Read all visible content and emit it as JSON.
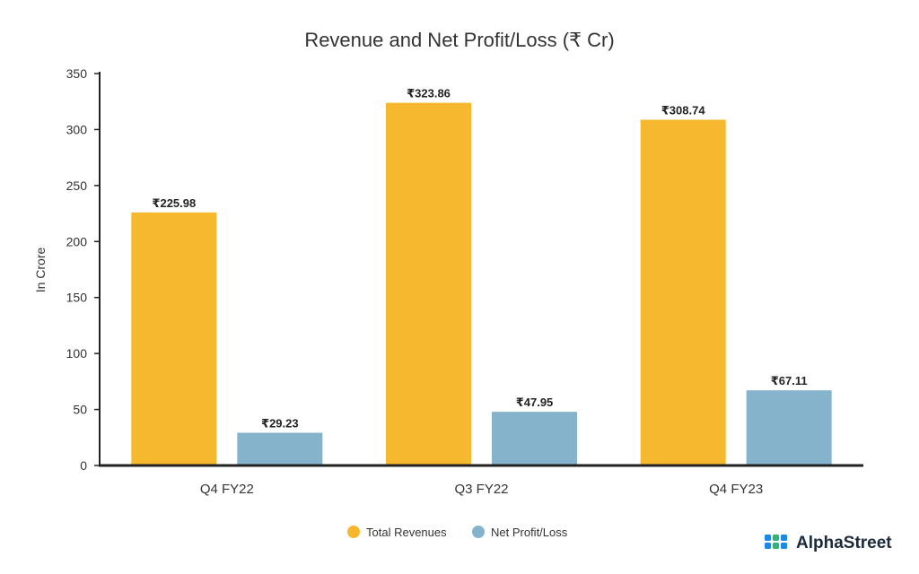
{
  "chart_data": {
    "type": "bar",
    "title": "Revenue and Net Profit/Loss (₹ Cr)",
    "ylabel": "In Crore",
    "xlabel": "",
    "categories": [
      "Q4 FY22",
      "Q3 FY22",
      "Q4 FY23"
    ],
    "series": [
      {
        "name": "Total Revenues",
        "color": "#F5B82E",
        "values": [
          225.98,
          323.86,
          308.74
        ],
        "labels": [
          "₹225.98",
          "₹323.86",
          "₹308.74"
        ]
      },
      {
        "name": "Net Profit/Loss",
        "color": "#84B3CB",
        "values": [
          29.23,
          47.95,
          67.11
        ],
        "labels": [
          "₹29.23",
          "₹47.95",
          "₹67.11"
        ]
      }
    ],
    "ylim": [
      0,
      350
    ],
    "yticks": [
      0,
      50,
      100,
      150,
      200,
      250,
      300,
      350
    ],
    "grid": false,
    "legend": "bottom-center"
  },
  "brand": {
    "name": "AlphaStreet",
    "icon": "alphastreet-logo-icon",
    "colors": [
      "#1E88E5",
      "#2BB673"
    ]
  }
}
